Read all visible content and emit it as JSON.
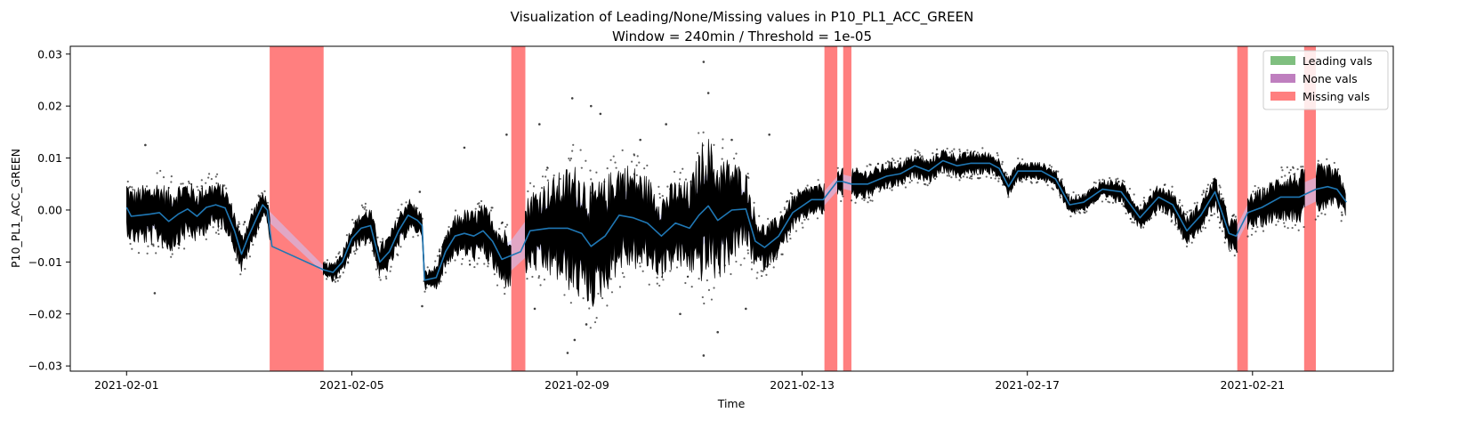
{
  "chart_data": {
    "type": "line",
    "title": "Visualization of Leading/None/Missing values in P10_PL1_ACC_GREEN",
    "subtitle": "Window = 240min / Threshold = 1e-05",
    "xlabel": "Time",
    "ylabel": "P10_PL1_ACC_GREEN",
    "xlim": [
      "2021-01-31T00:00",
      "2021-02-23T12:00"
    ],
    "ylim": [
      -0.031,
      0.0315
    ],
    "x_ticks": [
      "2021-02-01",
      "2021-02-05",
      "2021-02-09",
      "2021-02-13",
      "2021-02-17",
      "2021-02-21"
    ],
    "y_ticks": [
      0.03,
      0.02,
      0.01,
      0.0,
      -0.01,
      -0.02,
      -0.03
    ],
    "y_tick_labels": [
      "0.03",
      "0.02",
      "0.01",
      "0.00",
      "−0.01",
      "−0.02",
      "−0.03"
    ],
    "legend": {
      "placement": "top-right",
      "entries": [
        {
          "label": "Leading vals",
          "color": "#7fbf7f"
        },
        {
          "label": "None vals",
          "color": "#bf7fbf"
        },
        {
          "label": "Missing vals",
          "color": "#ff7f7f"
        }
      ]
    },
    "missing_intervals": [
      [
        "2021-02-03T13:00",
        "2021-02-04T12:00"
      ],
      [
        "2021-02-07T20:00",
        "2021-02-08T02:00"
      ],
      [
        "2021-02-13T09:30",
        "2021-02-13T15:00"
      ],
      [
        "2021-02-13T17:30",
        "2021-02-13T21:00"
      ],
      [
        "2021-02-20T17:30",
        "2021-02-20T22:00"
      ],
      [
        "2021-02-21T22:00",
        "2021-02-22T03:00"
      ]
    ],
    "series": [
      {
        "type": "rolling-mean",
        "color": "#1f77b4",
        "points": [
          [
            "2021-02-01T00:00",
            0.0005
          ],
          [
            "2021-02-01T02:00",
            -0.0012
          ],
          [
            "2021-02-01T06:00",
            -0.001
          ],
          [
            "2021-02-01T10:00",
            -0.0008
          ],
          [
            "2021-02-01T14:00",
            -0.0005
          ],
          [
            "2021-02-01T18:00",
            -0.0022
          ],
          [
            "2021-02-01T22:00",
            -0.0008
          ],
          [
            "2021-02-02T02:00",
            0.0002
          ],
          [
            "2021-02-02T06:00",
            -0.0012
          ],
          [
            "2021-02-02T10:00",
            0.0005
          ],
          [
            "2021-02-02T14:00",
            0.001
          ],
          [
            "2021-02-02T18:00",
            0.0004
          ],
          [
            "2021-02-02T22:00",
            -0.004
          ],
          [
            "2021-02-03T01:00",
            -0.0085
          ],
          [
            "2021-02-03T04:00",
            -0.005
          ],
          [
            "2021-02-03T07:00",
            -0.002
          ],
          [
            "2021-02-03T10:00",
            0.001
          ],
          [
            "2021-02-03T12:00",
            0.0
          ],
          [
            "2021-02-03T14:00",
            -0.007
          ],
          [
            "2021-02-04T12:00",
            -0.0115
          ],
          [
            "2021-02-04T16:00",
            -0.012
          ],
          [
            "2021-02-04T20:00",
            -0.01
          ],
          [
            "2021-02-05T00:00",
            -0.0055
          ],
          [
            "2021-02-05T04:00",
            -0.0035
          ],
          [
            "2021-02-05T08:00",
            -0.003
          ],
          [
            "2021-02-05T12:00",
            -0.01
          ],
          [
            "2021-02-05T16:00",
            -0.008
          ],
          [
            "2021-02-05T20:00",
            -0.004
          ],
          [
            "2021-02-06T00:00",
            -0.001
          ],
          [
            "2021-02-06T04:00",
            -0.002
          ],
          [
            "2021-02-06T06:00",
            -0.003
          ],
          [
            "2021-02-06T07:00",
            -0.0135
          ],
          [
            "2021-02-06T12:00",
            -0.013
          ],
          [
            "2021-02-06T16:00",
            -0.008
          ],
          [
            "2021-02-06T20:00",
            -0.005
          ],
          [
            "2021-02-07T00:00",
            -0.0045
          ],
          [
            "2021-02-07T04:00",
            -0.005
          ],
          [
            "2021-02-07T08:00",
            -0.004
          ],
          [
            "2021-02-07T12:00",
            -0.006
          ],
          [
            "2021-02-07T16:00",
            -0.0095
          ],
          [
            "2021-02-08T00:00",
            -0.008
          ],
          [
            "2021-02-08T04:00",
            -0.004
          ],
          [
            "2021-02-08T12:00",
            -0.0035
          ],
          [
            "2021-02-08T20:00",
            -0.0035
          ],
          [
            "2021-02-09T02:00",
            -0.0045
          ],
          [
            "2021-02-09T06:00",
            -0.007
          ],
          [
            "2021-02-09T12:00",
            -0.005
          ],
          [
            "2021-02-09T18:00",
            -0.001
          ],
          [
            "2021-02-10T00:00",
            -0.0015
          ],
          [
            "2021-02-10T06:00",
            -0.0025
          ],
          [
            "2021-02-10T12:00",
            -0.005
          ],
          [
            "2021-02-10T18:00",
            -0.0025
          ],
          [
            "2021-02-11T00:00",
            -0.0035
          ],
          [
            "2021-02-11T04:00",
            -0.001
          ],
          [
            "2021-02-11T08:00",
            0.0008
          ],
          [
            "2021-02-11T12:00",
            -0.002
          ],
          [
            "2021-02-11T18:00",
            0.0
          ],
          [
            "2021-02-12T00:00",
            0.0002
          ],
          [
            "2021-02-12T04:00",
            -0.006
          ],
          [
            "2021-02-12T08:00",
            -0.0072
          ],
          [
            "2021-02-12T14:00",
            -0.005
          ],
          [
            "2021-02-12T20:00",
            -0.0005
          ],
          [
            "2021-02-13T04:00",
            0.002
          ],
          [
            "2021-02-13T09:00",
            0.002
          ],
          [
            "2021-02-13T15:00",
            0.0055
          ],
          [
            "2021-02-13T17:00",
            0.0055
          ],
          [
            "2021-02-13T21:00",
            0.005
          ],
          [
            "2021-02-14T04:00",
            0.005
          ],
          [
            "2021-02-14T12:00",
            0.0065
          ],
          [
            "2021-02-14T18:00",
            0.007
          ],
          [
            "2021-02-15T00:00",
            0.0085
          ],
          [
            "2021-02-15T06:00",
            0.0075
          ],
          [
            "2021-02-15T12:00",
            0.0095
          ],
          [
            "2021-02-15T18:00",
            0.0085
          ],
          [
            "2021-02-16T00:00",
            0.009
          ],
          [
            "2021-02-16T08:00",
            0.009
          ],
          [
            "2021-02-16T12:00",
            0.008
          ],
          [
            "2021-02-16T16:00",
            0.0045
          ],
          [
            "2021-02-16T20:00",
            0.0075
          ],
          [
            "2021-02-17T06:00",
            0.0075
          ],
          [
            "2021-02-17T12:00",
            0.006
          ],
          [
            "2021-02-17T18:00",
            0.001
          ],
          [
            "2021-02-18T00:00",
            0.0015
          ],
          [
            "2021-02-18T08:00",
            0.004
          ],
          [
            "2021-02-18T16:00",
            0.0035
          ],
          [
            "2021-02-19T00:00",
            -0.0015
          ],
          [
            "2021-02-19T08:00",
            0.0025
          ],
          [
            "2021-02-19T14:00",
            0.001
          ],
          [
            "2021-02-19T20:00",
            -0.004
          ],
          [
            "2021-02-20T02:00",
            -0.001
          ],
          [
            "2021-02-20T08:00",
            0.0035
          ],
          [
            "2021-02-20T14:00",
            -0.0045
          ],
          [
            "2021-02-20T17:00",
            -0.005
          ],
          [
            "2021-02-20T22:00",
            -0.0005
          ],
          [
            "2021-02-21T04:00",
            0.0005
          ],
          [
            "2021-02-21T12:00",
            0.0025
          ],
          [
            "2021-02-21T20:00",
            0.0025
          ],
          [
            "2021-02-22T03:00",
            0.004
          ],
          [
            "2021-02-22T08:00",
            0.0045
          ],
          [
            "2021-02-22T12:00",
            0.004
          ],
          [
            "2021-02-22T16:00",
            0.0015
          ]
        ]
      },
      {
        "type": "scatter-raw",
        "color": "#000000",
        "spread_points": [
          [
            "2021-02-01T00:00",
            0.0045
          ],
          [
            "2021-02-01T18:00",
            0.0055
          ],
          [
            "2021-02-02T12:00",
            0.004
          ],
          [
            "2021-02-03T06:00",
            0.003
          ],
          [
            "2021-02-03T12:00",
            0.002
          ],
          [
            "2021-02-04T12:00",
            0.0012
          ],
          [
            "2021-02-05T06:00",
            0.003
          ],
          [
            "2021-02-06T00:00",
            0.003
          ],
          [
            "2021-02-06T08:00",
            0.0015
          ],
          [
            "2021-02-07T00:00",
            0.004
          ],
          [
            "2021-02-07T18:00",
            0.005
          ],
          [
            "2021-02-08T12:00",
            0.008
          ],
          [
            "2021-02-09T00:00",
            0.011
          ],
          [
            "2021-02-09T12:00",
            0.0095
          ],
          [
            "2021-02-10T00:00",
            0.0085
          ],
          [
            "2021-02-10T12:00",
            0.007
          ],
          [
            "2021-02-11T00:00",
            0.0075
          ],
          [
            "2021-02-11T06:00",
            0.012
          ],
          [
            "2021-02-11T18:00",
            0.0085
          ],
          [
            "2021-02-12T06:00",
            0.004
          ],
          [
            "2021-02-12T18:00",
            0.003
          ],
          [
            "2021-02-13T06:00",
            0.0025
          ],
          [
            "2021-02-14T00:00",
            0.0025
          ],
          [
            "2021-02-15T00:00",
            0.002
          ],
          [
            "2021-02-16T00:00",
            0.002
          ],
          [
            "2021-02-17T00:00",
            0.0015
          ],
          [
            "2021-02-18T00:00",
            0.0015
          ],
          [
            "2021-02-19T00:00",
            0.002
          ],
          [
            "2021-02-20T00:00",
            0.0025
          ],
          [
            "2021-02-21T00:00",
            0.003
          ],
          [
            "2021-02-22T00:00",
            0.0045
          ],
          [
            "2021-02-22T16:00",
            0.003
          ]
        ],
        "outliers": [
          [
            "2021-02-08T20:00",
            -0.0275
          ],
          [
            "2021-02-08T23:00",
            -0.025
          ],
          [
            "2021-02-09T04:00",
            -0.022
          ],
          [
            "2021-02-08T22:00",
            0.0215
          ],
          [
            "2021-02-09T06:00",
            0.02
          ],
          [
            "2021-02-10T14:00",
            0.0165
          ],
          [
            "2021-02-10T20:00",
            -0.02
          ],
          [
            "2021-02-11T06:00",
            0.0285
          ],
          [
            "2021-02-11T06:00",
            -0.028
          ],
          [
            "2021-02-11T08:00",
            0.0225
          ],
          [
            "2021-02-11T12:00",
            -0.0235
          ],
          [
            "2021-02-11T18:00",
            0.0135
          ],
          [
            "2021-02-12T00:00",
            -0.019
          ],
          [
            "2021-02-07T00:00",
            0.012
          ],
          [
            "2021-02-07T18:00",
            0.0145
          ],
          [
            "2021-02-01T12:00",
            -0.016
          ],
          [
            "2021-02-01T08:00",
            0.0125
          ],
          [
            "2021-02-08T08:00",
            0.0165
          ],
          [
            "2021-02-09T10:00",
            0.0185
          ],
          [
            "2021-02-06T06:00",
            -0.0185
          ],
          [
            "2021-02-06T05:00",
            0.0035
          ],
          [
            "2021-02-12T10:00",
            0.0145
          ],
          [
            "2021-02-08T06:00",
            -0.019
          ],
          [
            "2021-02-10T03:00",
            0.0135
          ]
        ]
      }
    ]
  }
}
